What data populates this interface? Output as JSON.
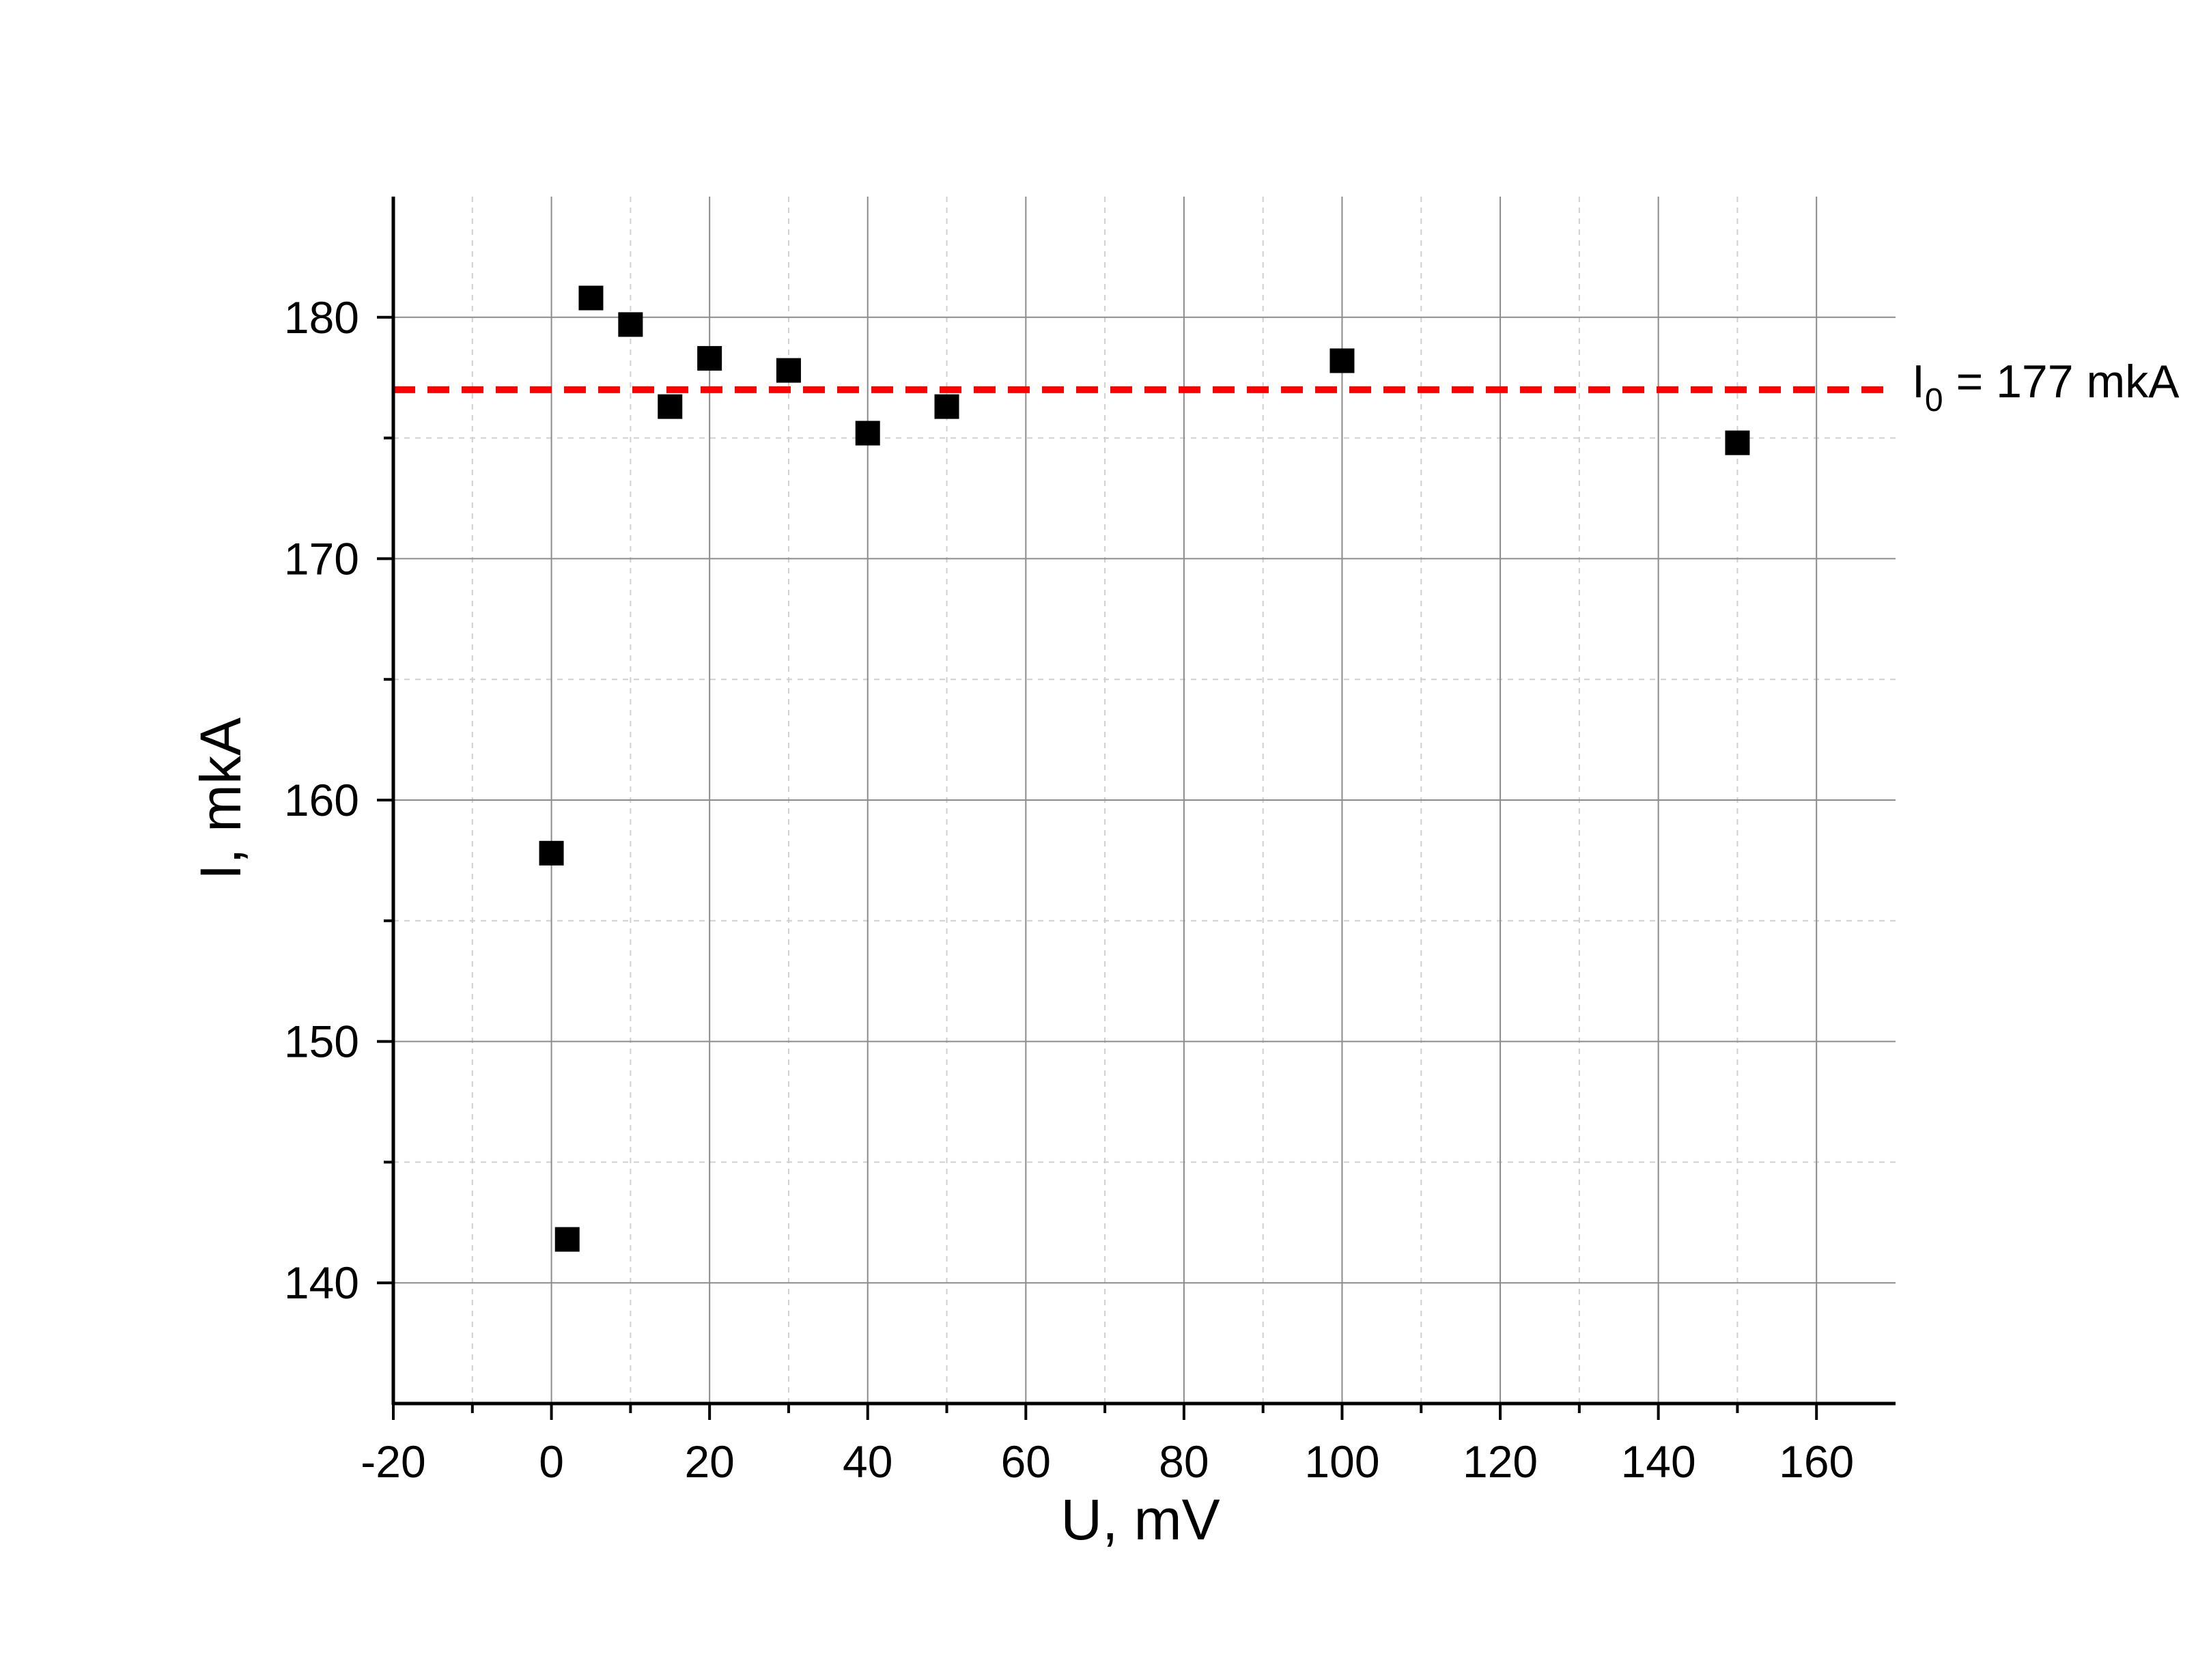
{
  "chart_data": {
    "type": "scatter",
    "xlabel": "U, mV",
    "ylabel": "I, mkA",
    "xlim": [
      -20,
      170
    ],
    "ylim": [
      135,
      185
    ],
    "x_ticks": [
      -20,
      0,
      20,
      40,
      60,
      80,
      100,
      120,
      140,
      160
    ],
    "x_tick_labels": [
      "-20",
      "0",
      "20",
      "40",
      "60",
      "80",
      "100",
      "120",
      "140",
      "160"
    ],
    "y_ticks": [
      140,
      150,
      160,
      170,
      180
    ],
    "y_tick_labels": [
      "140",
      "150",
      "160",
      "170",
      "180"
    ],
    "grid": true,
    "series": [
      {
        "marker": "square",
        "color": "#000000",
        "points": [
          {
            "x": 0,
            "y": 157.8
          },
          {
            "x": 2,
            "y": 141.8
          },
          {
            "x": 5,
            "y": 180.8
          },
          {
            "x": 10,
            "y": 179.7
          },
          {
            "x": 15,
            "y": 176.3
          },
          {
            "x": 20,
            "y": 178.3
          },
          {
            "x": 30,
            "y": 177.8
          },
          {
            "x": 40,
            "y": 175.2
          },
          {
            "x": 50,
            "y": 176.3
          },
          {
            "x": 100,
            "y": 178.2
          },
          {
            "x": 150,
            "y": 174.8
          }
        ]
      }
    ],
    "reference_line": {
      "y": 177,
      "color": "#ff0000",
      "style": "dashed",
      "label_main": "I",
      "label_sub": "0",
      "label_rest": " = 177 mkA"
    }
  }
}
